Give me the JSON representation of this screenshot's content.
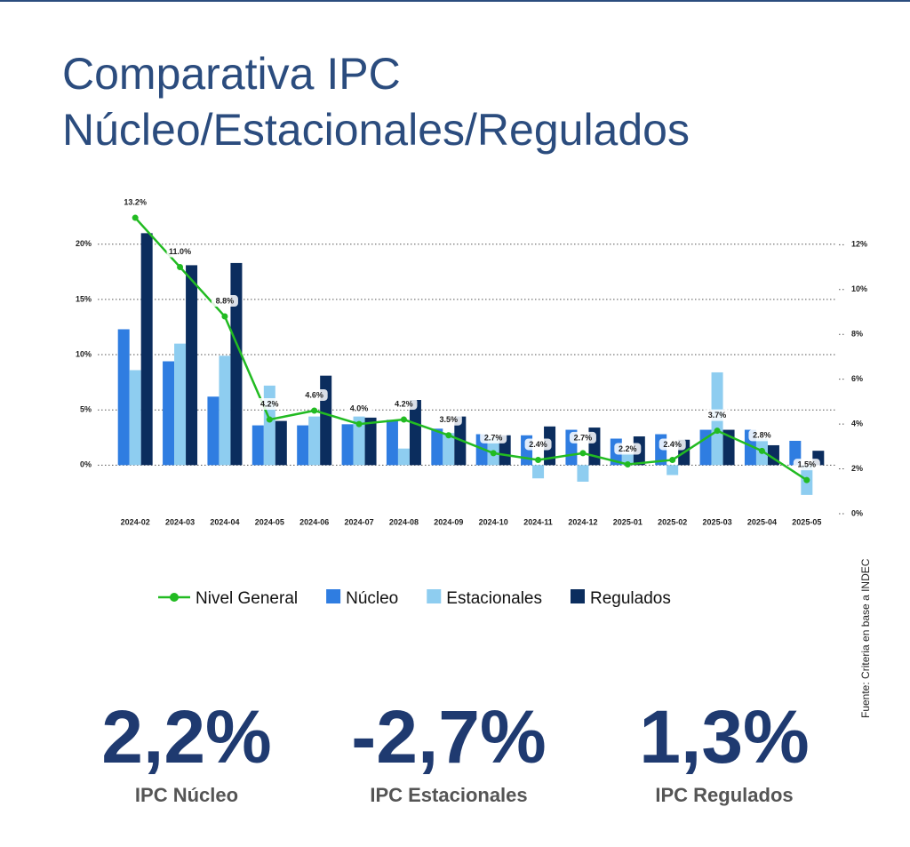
{
  "header": {
    "title_line1": "Comparativa IPC",
    "title_line2": "Núcleo/Estacionales/Regulados"
  },
  "chart_data": {
    "type": "bar-line",
    "categories": [
      "2024-02",
      "2024-03",
      "2024-04",
      "2024-05",
      "2024-06",
      "2024-07",
      "2024-08",
      "2024-09",
      "2024-10",
      "2024-11",
      "2024-12",
      "2025-01",
      "2025-02",
      "2025-03",
      "2025-04",
      "2025-05"
    ],
    "series": [
      {
        "name": "Nivel General",
        "type": "line",
        "axis": "y2",
        "color": "#22bb22",
        "values": [
          13.2,
          11.0,
          8.8,
          4.2,
          4.6,
          4.0,
          4.2,
          3.5,
          2.7,
          2.4,
          2.7,
          2.2,
          2.4,
          3.7,
          2.8,
          1.5
        ],
        "value_labels": [
          "13.2%",
          "11.0%",
          "8.8%",
          "4.2%",
          "4.6%",
          "4.0%",
          "4.2%",
          "3.5%",
          "2.7%",
          "2.4%",
          "2.7%",
          "2.2%",
          "2.4%",
          "3.7%",
          "2.8%",
          "1.5%"
        ]
      },
      {
        "name": "Núcleo",
        "type": "bar",
        "color": "#2f7de1",
        "values": [
          12.3,
          9.4,
          6.2,
          3.6,
          3.6,
          3.7,
          4.1,
          3.3,
          2.8,
          2.7,
          3.2,
          2.4,
          2.8,
          3.2,
          3.2,
          2.2
        ]
      },
      {
        "name": "Estacionales",
        "type": "bar",
        "color": "#8ecdf0",
        "values": [
          8.6,
          11.0,
          9.9,
          7.2,
          4.4,
          4.4,
          1.5,
          2.9,
          2.5,
          -1.2,
          -1.5,
          1.1,
          -0.9,
          8.4,
          2.4,
          -2.7
        ]
      },
      {
        "name": "Regulados",
        "type": "bar",
        "color": "#0b2d5e",
        "values": [
          21.0,
          18.1,
          18.3,
          4.0,
          8.1,
          4.3,
          5.9,
          4.4,
          2.7,
          3.5,
          3.4,
          2.6,
          2.3,
          3.2,
          1.8,
          1.3
        ]
      }
    ],
    "ylim": [
      -4.4,
      22.8
    ],
    "yticks": [
      {
        "value": 0,
        "label": "0%"
      },
      {
        "value": 5,
        "label": "5%"
      },
      {
        "value": 10,
        "label": "10%"
      },
      {
        "value": 15,
        "label": "15%"
      },
      {
        "value": 20,
        "label": "20%"
      }
    ],
    "y2lim": [
      0,
      13.4
    ],
    "y2ticks": [
      {
        "value": 0,
        "label": "0%"
      },
      {
        "value": 2,
        "label": "2%"
      },
      {
        "value": 4,
        "label": "4%"
      },
      {
        "value": 6,
        "label": "6%"
      },
      {
        "value": 8,
        "label": "8%"
      },
      {
        "value": 10,
        "label": "10%"
      },
      {
        "value": 12,
        "label": "12%"
      }
    ],
    "grid": true,
    "legend": "bottom",
    "source": "Fuente: Criteria en base a INDEC"
  },
  "stats": [
    {
      "value": "2,2%",
      "label": "IPC Núcleo"
    },
    {
      "value": "-2,7%",
      "label": "IPC Estacionales"
    },
    {
      "value": "1,3%",
      "label": "IPC Regulados"
    }
  ]
}
